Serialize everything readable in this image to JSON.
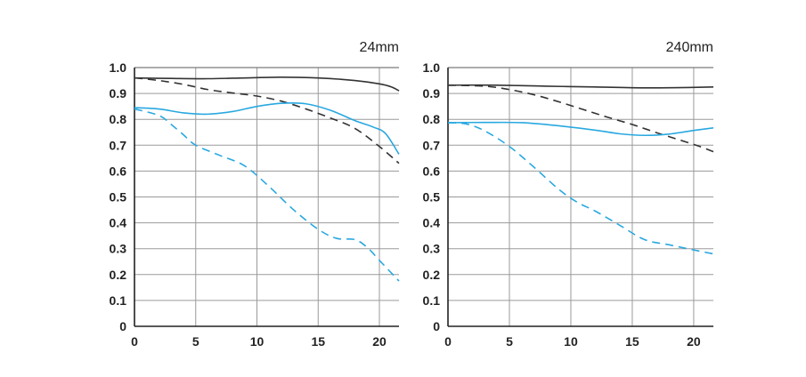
{
  "chart_data": [
    {
      "type": "line",
      "title": "24mm",
      "xlabel": "",
      "ylabel": "",
      "xlim": [
        0,
        21.6
      ],
      "ylim": [
        0,
        1.0
      ],
      "x_ticks": [
        "0",
        "5",
        "10",
        "15",
        "20"
      ],
      "y_ticks": [
        "0",
        "0.1",
        "0.2",
        "0.3",
        "0.4",
        "0.5",
        "0.6",
        "0.7",
        "0.8",
        "0.9",
        "1.0"
      ],
      "grid": true,
      "series": [
        {
          "color": "#333333",
          "dash": "solid",
          "points": [
            [
              0,
              0.96
            ],
            [
              3,
              0.958
            ],
            [
              6,
              0.957
            ],
            [
              9,
              0.96
            ],
            [
              12,
              0.963
            ],
            [
              15,
              0.96
            ],
            [
              18,
              0.95
            ],
            [
              20,
              0.937
            ],
            [
              21,
              0.925
            ],
            [
              21.6,
              0.91
            ]
          ]
        },
        {
          "color": "#333333",
          "dash": "dashed",
          "points": [
            [
              0,
              0.96
            ],
            [
              2,
              0.95
            ],
            [
              4,
              0.935
            ],
            [
              6,
              0.915
            ],
            [
              8,
              0.902
            ],
            [
              10,
              0.89
            ],
            [
              12,
              0.87
            ],
            [
              14,
              0.84
            ],
            [
              16,
              0.805
            ],
            [
              18,
              0.765
            ],
            [
              20,
              0.695
            ],
            [
              21.6,
              0.63
            ]
          ]
        },
        {
          "color": "#29a8e0",
          "dash": "solid",
          "points": [
            [
              0,
              0.845
            ],
            [
              2,
              0.84
            ],
            [
              4,
              0.825
            ],
            [
              6,
              0.82
            ],
            [
              8,
              0.83
            ],
            [
              10,
              0.85
            ],
            [
              12,
              0.862
            ],
            [
              14,
              0.86
            ],
            [
              16,
              0.835
            ],
            [
              18,
              0.795
            ],
            [
              19.5,
              0.77
            ],
            [
              20.5,
              0.745
            ],
            [
              21.6,
              0.665
            ]
          ]
        },
        {
          "color": "#29a8e0",
          "dash": "dashed",
          "points": [
            [
              0,
              0.84
            ],
            [
              2,
              0.815
            ],
            [
              3,
              0.78
            ],
            [
              4,
              0.74
            ],
            [
              5,
              0.7
            ],
            [
              7,
              0.66
            ],
            [
              9,
              0.62
            ],
            [
              11,
              0.54
            ],
            [
              13,
              0.45
            ],
            [
              15,
              0.375
            ],
            [
              16.5,
              0.34
            ],
            [
              18,
              0.335
            ],
            [
              19,
              0.305
            ],
            [
              20,
              0.255
            ],
            [
              21,
              0.205
            ],
            [
              21.6,
              0.175
            ]
          ]
        }
      ]
    },
    {
      "type": "line",
      "title": "240mm",
      "xlabel": "",
      "ylabel": "",
      "xlim": [
        0,
        21.6
      ],
      "ylim": [
        0,
        1.0
      ],
      "x_ticks": [
        "0",
        "5",
        "10",
        "15",
        "20"
      ],
      "y_ticks": [
        "0",
        "0.1",
        "0.2",
        "0.3",
        "0.4",
        "0.5",
        "0.6",
        "0.7",
        "0.8",
        "0.9",
        "1.0"
      ],
      "grid": true,
      "series": [
        {
          "color": "#333333",
          "dash": "solid",
          "points": [
            [
              0,
              0.932
            ],
            [
              4,
              0.932
            ],
            [
              8,
              0.928
            ],
            [
              12,
              0.925
            ],
            [
              15,
              0.922
            ],
            [
              18,
              0.922
            ],
            [
              21.6,
              0.925
            ]
          ]
        },
        {
          "color": "#333333",
          "dash": "dashed",
          "points": [
            [
              0,
              0.932
            ],
            [
              3,
              0.928
            ],
            [
              5,
              0.915
            ],
            [
              7,
              0.895
            ],
            [
              9,
              0.868
            ],
            [
              11,
              0.838
            ],
            [
              13,
              0.808
            ],
            [
              15,
              0.78
            ],
            [
              17,
              0.748
            ],
            [
              19,
              0.718
            ],
            [
              20.5,
              0.695
            ],
            [
              21.6,
              0.675
            ]
          ]
        },
        {
          "color": "#29a8e0",
          "dash": "solid",
          "points": [
            [
              0,
              0.787
            ],
            [
              3,
              0.788
            ],
            [
              6,
              0.787
            ],
            [
              9,
              0.775
            ],
            [
              12,
              0.758
            ],
            [
              14,
              0.744
            ],
            [
              16,
              0.738
            ],
            [
              18,
              0.743
            ],
            [
              20,
              0.757
            ],
            [
              21.6,
              0.767
            ]
          ]
        },
        {
          "color": "#29a8e0",
          "dash": "dashed",
          "points": [
            [
              0,
              0.787
            ],
            [
              1.5,
              0.782
            ],
            [
              3,
              0.755
            ],
            [
              5,
              0.695
            ],
            [
              7,
              0.615
            ],
            [
              9,
              0.53
            ],
            [
              10.5,
              0.48
            ],
            [
              12,
              0.445
            ],
            [
              14,
              0.39
            ],
            [
              16,
              0.335
            ],
            [
              18,
              0.315
            ],
            [
              20,
              0.295
            ],
            [
              21.6,
              0.28
            ]
          ]
        }
      ]
    }
  ]
}
